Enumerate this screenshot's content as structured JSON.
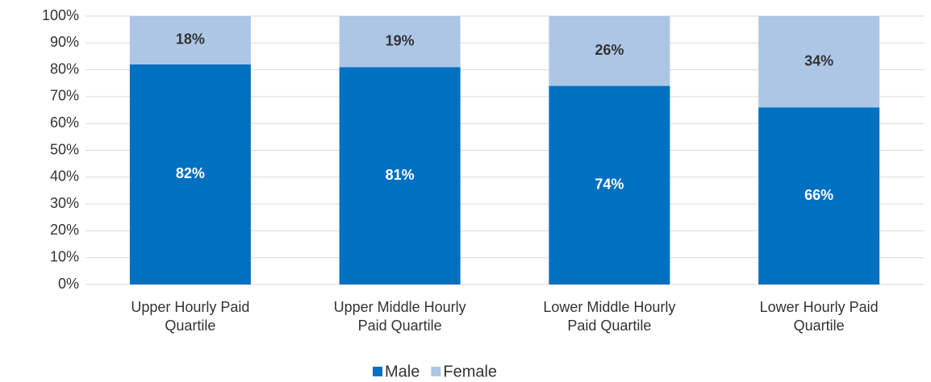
{
  "chart_data": {
    "type": "stacked_bar",
    "categories": [
      "Upper Hourly Paid Quartile",
      "Upper Middle Hourly Paid Quartile",
      "Lower Middle Hourly Paid Quartile",
      "Lower Hourly Paid Quartile"
    ],
    "series": [
      {
        "name": "Male",
        "color": "#0070c0",
        "values": [
          82,
          81,
          74,
          66
        ],
        "value_labels": [
          "82%",
          "81%",
          "74%",
          "66%"
        ]
      },
      {
        "name": "Female",
        "color": "#adc6e6",
        "values": [
          18,
          19,
          26,
          34
        ],
        "value_labels": [
          "18%",
          "19%",
          "26%",
          "34%"
        ]
      }
    ],
    "ylim": [
      0,
      100
    ],
    "yticks": [
      {
        "value": 0,
        "label": "0%"
      },
      {
        "value": 10,
        "label": "10%"
      },
      {
        "value": 20,
        "label": "20%"
      },
      {
        "value": 30,
        "label": "30%"
      },
      {
        "value": 40,
        "label": "40%"
      },
      {
        "value": 50,
        "label": "50%"
      },
      {
        "value": 60,
        "label": "60%"
      },
      {
        "value": 70,
        "label": "70%"
      },
      {
        "value": 80,
        "label": "80%"
      },
      {
        "value": 90,
        "label": "90%"
      },
      {
        "value": 100,
        "label": "100%"
      }
    ],
    "grid": true,
    "legend": "bottom"
  }
}
